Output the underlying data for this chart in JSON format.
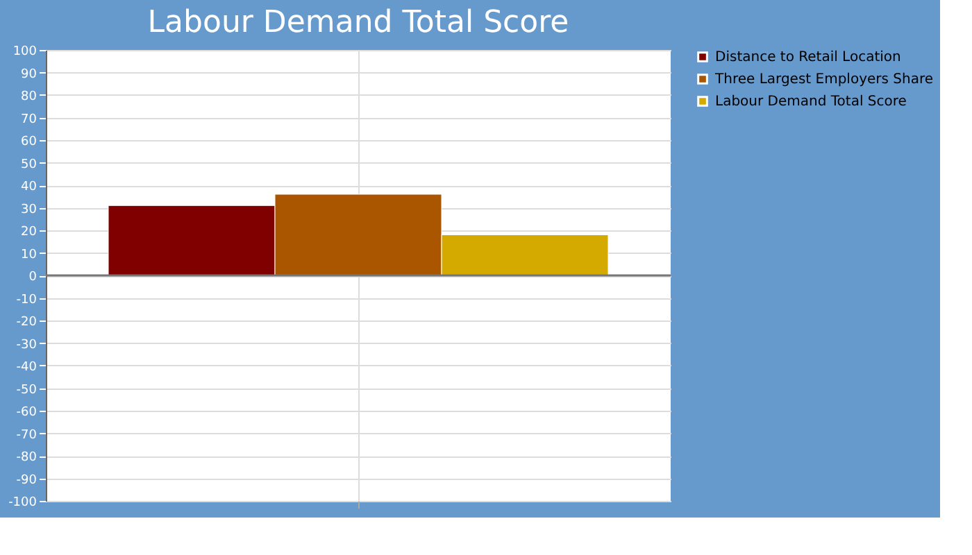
{
  "chart_data": {
    "type": "bar",
    "title": "Labour Demand Total Score",
    "categories": [
      null
    ],
    "series": [
      {
        "name": "Distance to Retail Location",
        "color": "#800000",
        "values": [
          31
        ]
      },
      {
        "name": "Three Largest Employers Share",
        "color": "#aa5500",
        "values": [
          36
        ]
      },
      {
        "name": "Labour Demand Total Score",
        "color": "#d4aa00",
        "values": [
          18
        ]
      }
    ],
    "ylim": [
      -100,
      100
    ],
    "yticks": [
      -100,
      -90,
      -80,
      -70,
      -60,
      -50,
      -40,
      -30,
      -20,
      -10,
      0,
      10,
      20,
      30,
      40,
      50,
      60,
      70,
      80,
      90,
      100
    ],
    "grid": true,
    "legend": "top right"
  }
}
